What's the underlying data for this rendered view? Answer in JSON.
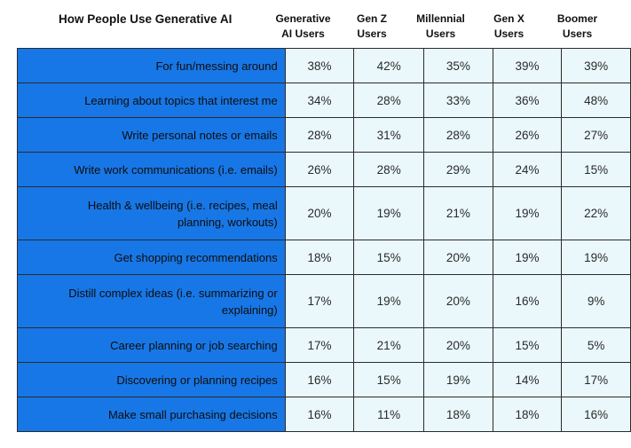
{
  "chart_data": {
    "type": "table",
    "title": "How People Use Generative AI",
    "columns": [
      {
        "line1": "Generative",
        "line2": "AI Users"
      },
      {
        "line1": "Gen Z",
        "line2": "Users"
      },
      {
        "line1": "Millennial",
        "line2": "Users"
      },
      {
        "line1": "Gen X",
        "line2": "Users"
      },
      {
        "line1": "Boomer",
        "line2": "Users"
      }
    ],
    "rows": [
      {
        "label": [
          "For fun/messing around"
        ],
        "values": [
          "38%",
          "42%",
          "35%",
          "39%",
          "39%"
        ]
      },
      {
        "label": [
          "Learning about topics that interest me"
        ],
        "values": [
          "34%",
          "28%",
          "33%",
          "36%",
          "48%"
        ]
      },
      {
        "label": [
          "Write personal notes or emails"
        ],
        "values": [
          "28%",
          "31%",
          "28%",
          "26%",
          "27%"
        ]
      },
      {
        "label": [
          "Write work communications (i.e. emails)"
        ],
        "values": [
          "26%",
          "28%",
          "29%",
          "24%",
          "15%"
        ]
      },
      {
        "label": [
          "Health & wellbeing (i.e. recipes, meal",
          "planning, workouts)"
        ],
        "values": [
          "20%",
          "19%",
          "21%",
          "19%",
          "22%"
        ]
      },
      {
        "label": [
          "Get shopping recommendations"
        ],
        "values": [
          "18%",
          "15%",
          "20%",
          "19%",
          "19%"
        ]
      },
      {
        "label": [
          "Distill complex ideas (i.e. summarizing or",
          "explaining)"
        ],
        "values": [
          "17%",
          "19%",
          "20%",
          "16%",
          "9%"
        ]
      },
      {
        "label": [
          "Career planning or job searching"
        ],
        "values": [
          "17%",
          "21%",
          "20%",
          "15%",
          "5%"
        ]
      },
      {
        "label": [
          "Discovering or planning recipes"
        ],
        "values": [
          "16%",
          "15%",
          "19%",
          "14%",
          "17%"
        ]
      },
      {
        "label": [
          "Make small purchasing decisions"
        ],
        "values": [
          "16%",
          "11%",
          "18%",
          "18%",
          "16%"
        ]
      }
    ]
  },
  "colors": {
    "label_fill": "#1877e6",
    "cell_fill": "#eaf8fc",
    "border": "#2b2b2b"
  }
}
